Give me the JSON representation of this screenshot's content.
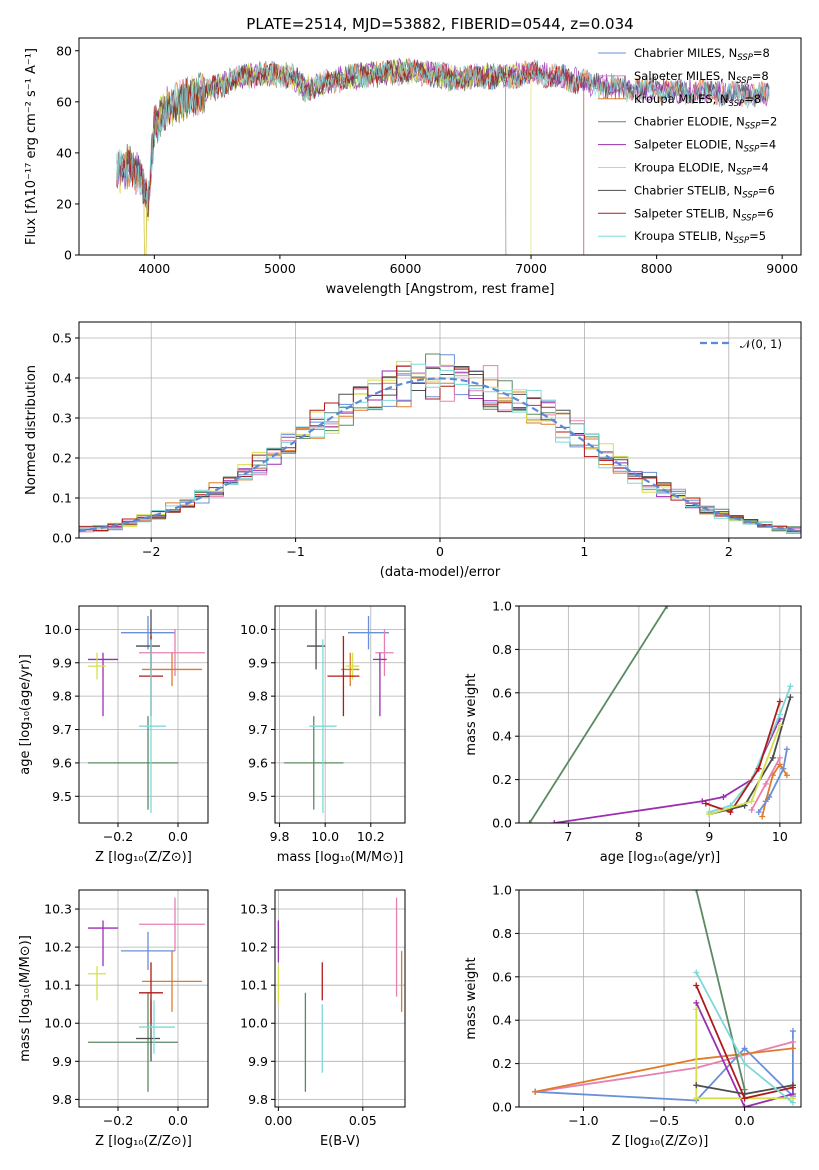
{
  "chart_data": [
    {
      "type": "line",
      "title": "PLATE=2514, MJD=53882, FIBERID=0544, z=0.034",
      "xlabel": "wavelength [Angstrom, rest frame]",
      "ylabel": "Flux [fλ10⁻¹⁷ erg cm⁻² s⁻¹ A⁻¹]",
      "xlim": [
        3400,
        9150
      ],
      "ylim": [
        0,
        85
      ],
      "xticks": [
        "4000",
        "5000",
        "6000",
        "7000",
        "8000",
        "9000"
      ],
      "yticks": [
        "0",
        "20",
        "40",
        "60",
        "80"
      ],
      "grid": false,
      "legend": "top-right",
      "spectrum_envelope": {
        "x": [
          3700,
          3800,
          3900,
          3950,
          4000,
          4100,
          4200,
          4300,
          4500,
          4700,
          4900,
          5100,
          5200,
          5400,
          5600,
          5800,
          6000,
          6200,
          6400,
          6600,
          6800,
          7000,
          7200,
          7400,
          7600,
          7800,
          8000,
          8200,
          8400,
          8600,
          8800
        ],
        "y": [
          32,
          35,
          30,
          20,
          50,
          58,
          60,
          62,
          66,
          70,
          71,
          70,
          65,
          68,
          70,
          71,
          72,
          71,
          69,
          70,
          70,
          71,
          70,
          68,
          66,
          65,
          65,
          64,
          64,
          63,
          63
        ]
      },
      "series": [
        {
          "name": "Chabrier MILES, N",
          "sub": "SSP",
          "suffix": "=8",
          "color": "#6a8fd9"
        },
        {
          "name": "Salpeter MILES, N",
          "sub": "SSP",
          "suffix": "=8",
          "color": "#e680b4"
        },
        {
          "name": "Kroupa MILES, N",
          "sub": "SSP",
          "suffix": "=8",
          "color": "#e07b2a"
        },
        {
          "name": "Chabrier ELODIE, N",
          "sub": "SSP",
          "suffix": "=2",
          "color": "#5a8a62"
        },
        {
          "name": "Salpeter ELODIE, N",
          "sub": "SSP",
          "suffix": "=4",
          "color": "#9a2fb0"
        },
        {
          "name": "Kroupa ELODIE, N",
          "sub": "SSP",
          "suffix": "=4",
          "color": "#d6e04a"
        },
        {
          "name": "Chabrier STELIB, N",
          "sub": "SSP",
          "suffix": "=6",
          "color": "#4d4d4d"
        },
        {
          "name": "Salpeter STELIB, N",
          "sub": "SSP",
          "suffix": "=6",
          "color": "#b01a1a"
        },
        {
          "name": "Kroupa STELIB, N",
          "sub": "SSP",
          "suffix": "=5",
          "color": "#7fd8d8"
        }
      ]
    },
    {
      "type": "histogram",
      "xlabel": "(data-model)/error",
      "ylabel": "Normed distribution",
      "xlim": [
        -2.5,
        2.5
      ],
      "ylim": [
        0,
        0.54
      ],
      "xticks": [
        "−2",
        "−1",
        "0",
        "1",
        "2"
      ],
      "yticks": [
        "0.0",
        "0.1",
        "0.2",
        "0.3",
        "0.4",
        "0.5"
      ],
      "grid": true,
      "legend": "top-right",
      "legend_label": "𝒩(0, 1)",
      "reference_curve": "normal(0,1)",
      "bin_width": 0.1
    },
    {
      "type": "scatter",
      "xlabel": "Z [log₁₀(Z/Z⊙)]",
      "ylabel": "age  [log₁₀(age/yr)]",
      "xlim": [
        -0.33,
        0.1
      ],
      "ylim": [
        9.42,
        10.07
      ],
      "xticks": [
        "−0.2",
        "0.0"
      ],
      "yticks": [
        "9.5",
        "9.6",
        "9.7",
        "9.8",
        "9.9",
        "10.0"
      ],
      "grid": true,
      "points": [
        {
          "x": -0.1,
          "xerr": [
            0.09,
            0.09
          ],
          "y": 9.99,
          "yerr": [
            0.05,
            0.05
          ],
          "color": "#6a8fd9"
        },
        {
          "x": -0.01,
          "xerr": [
            0.12,
            0.1
          ],
          "y": 9.93,
          "yerr": [
            0.07,
            0.07
          ],
          "color": "#e680b4"
        },
        {
          "x": -0.02,
          "xerr": [
            0.1,
            0.1
          ],
          "y": 9.88,
          "yerr": [
            0.05,
            0.05
          ],
          "color": "#e07b2a"
        },
        {
          "x": -0.1,
          "xerr": [
            0.2,
            0.1
          ],
          "y": 9.6,
          "yerr": [
            0.14,
            0.14
          ],
          "color": "#5a8a62"
        },
        {
          "x": -0.25,
          "xerr": [
            0.05,
            0.05
          ],
          "y": 9.91,
          "yerr": [
            0.17,
            0.02
          ],
          "color": "#9a2fb0"
        },
        {
          "x": -0.27,
          "xerr": [
            0.03,
            0.03
          ],
          "y": 9.89,
          "yerr": [
            0.04,
            0.04
          ],
          "color": "#d6e04a"
        },
        {
          "x": -0.09,
          "xerr": [
            0.05,
            0.03
          ],
          "y": 9.95,
          "yerr": [
            0.07,
            0.11
          ],
          "color": "#4d4d4d"
        },
        {
          "x": -0.09,
          "xerr": [
            0.04,
            0.04
          ],
          "y": 9.86,
          "yerr": [
            0.12,
            0.12
          ],
          "color": "#b01a1a"
        },
        {
          "x": -0.09,
          "xerr": [
            0.04,
            0.05
          ],
          "y": 9.71,
          "yerr": [
            0.26,
            0.26
          ],
          "color": "#7fd8d8"
        }
      ]
    },
    {
      "type": "scatter",
      "xlabel": "mass [log₁₀(M/M⊙)]",
      "ylabel": "",
      "xlim": [
        9.78,
        10.35
      ],
      "ylim": [
        9.42,
        10.07
      ],
      "xticks": [
        "9.8",
        "10.0",
        "10.2"
      ],
      "yticks": [
        "9.5",
        "9.6",
        "9.7",
        "9.8",
        "9.9",
        "10.0"
      ],
      "grid": true,
      "points": [
        {
          "x": 10.19,
          "xerr": [
            0.09,
            0.09
          ],
          "y": 9.99,
          "yerr": [
            0.05,
            0.05
          ],
          "color": "#6a8fd9"
        },
        {
          "x": 10.26,
          "xerr": [
            0.04,
            0.04
          ],
          "y": 9.93,
          "yerr": [
            0.07,
            0.07
          ],
          "color": "#e680b4"
        },
        {
          "x": 10.11,
          "xerr": [
            0.04,
            0.04
          ],
          "y": 9.88,
          "yerr": [
            0.05,
            0.05
          ],
          "color": "#e07b2a"
        },
        {
          "x": 9.95,
          "xerr": [
            0.13,
            0.13
          ],
          "y": 9.6,
          "yerr": [
            0.14,
            0.14
          ],
          "color": "#5a8a62"
        },
        {
          "x": 10.24,
          "xerr": [
            0.03,
            0.03
          ],
          "y": 9.91,
          "yerr": [
            0.17,
            0.02
          ],
          "color": "#9a2fb0"
        },
        {
          "x": 10.12,
          "xerr": [
            0.03,
            0.03
          ],
          "y": 9.89,
          "yerr": [
            0.04,
            0.04
          ],
          "color": "#d6e04a"
        },
        {
          "x": 9.96,
          "xerr": [
            0.04,
            0.04
          ],
          "y": 9.95,
          "yerr": [
            0.07,
            0.11
          ],
          "color": "#4d4d4d"
        },
        {
          "x": 10.08,
          "xerr": [
            0.07,
            0.07
          ],
          "y": 9.86,
          "yerr": [
            0.12,
            0.12
          ],
          "color": "#b01a1a"
        },
        {
          "x": 9.99,
          "xerr": [
            0.06,
            0.06
          ],
          "y": 9.71,
          "yerr": [
            0.26,
            0.26
          ],
          "color": "#7fd8d8"
        }
      ]
    },
    {
      "type": "line",
      "xlabel": "age  [log₁₀(age/yr)]",
      "ylabel": "mass weight",
      "xlim": [
        6.3,
        10.3
      ],
      "ylim": [
        0,
        1.0
      ],
      "xticks": [
        "7",
        "8",
        "9",
        "10"
      ],
      "yticks": [
        "0.0",
        "0.2",
        "0.4",
        "0.6",
        "0.8",
        "1.0"
      ],
      "grid": true,
      "series": [
        {
          "color": "#5a8a62",
          "x": [
            6.45,
            8.4
          ],
          "y": [
            0,
            1.0
          ]
        },
        {
          "color": "#9a2fb0",
          "x": [
            6.8,
            8.9,
            9.2,
            9.6,
            10.0
          ],
          "y": [
            0.0,
            0.1,
            0.12,
            0.2,
            0.48
          ]
        },
        {
          "color": "#7fd8d8",
          "x": [
            9.0,
            9.3,
            9.6,
            10.0,
            10.15
          ],
          "y": [
            0.05,
            0.08,
            0.2,
            0.5,
            0.63
          ]
        },
        {
          "color": "#b01a1a",
          "x": [
            8.95,
            9.3,
            9.7,
            10.0
          ],
          "y": [
            0.09,
            0.05,
            0.25,
            0.56
          ]
        },
        {
          "color": "#4d4d4d",
          "x": [
            9.0,
            9.5,
            9.9,
            10.15
          ],
          "y": [
            0.04,
            0.08,
            0.3,
            0.58
          ]
        },
        {
          "color": "#e07b2a",
          "x": [
            9.75,
            9.8,
            9.9,
            10.0,
            10.1
          ],
          "y": [
            0.03,
            0.1,
            0.22,
            0.27,
            0.22
          ]
        },
        {
          "color": "#6a8fd9",
          "x": [
            9.7,
            9.85,
            10.05,
            10.1
          ],
          "y": [
            0.05,
            0.12,
            0.25,
            0.34
          ]
        },
        {
          "color": "#e680b4",
          "x": [
            9.6,
            9.8,
            10.0
          ],
          "y": [
            0.06,
            0.18,
            0.3
          ]
        },
        {
          "color": "#d6e04a",
          "x": [
            9.0,
            9.6,
            10.0
          ],
          "y": [
            0.04,
            0.1,
            0.45
          ]
        }
      ]
    },
    {
      "type": "scatter",
      "xlabel": "Z [log₁₀(Z/Z⊙)]",
      "ylabel": "mass [log₁₀(M/M⊙)]",
      "xlim": [
        -0.33,
        0.1
      ],
      "ylim": [
        9.78,
        10.35
      ],
      "xticks": [
        "−0.2",
        "0.0"
      ],
      "yticks": [
        "9.8",
        "9.9",
        "10.0",
        "10.1",
        "10.2",
        "10.3"
      ],
      "grid": true,
      "points": [
        {
          "x": -0.1,
          "xerr": [
            0.09,
            0.09
          ],
          "y": 10.19,
          "yerr": [
            0.05,
            0.05
          ],
          "color": "#6a8fd9"
        },
        {
          "x": -0.01,
          "xerr": [
            0.12,
            0.1
          ],
          "y": 10.26,
          "yerr": [
            0.07,
            0.07
          ],
          "color": "#e680b4"
        },
        {
          "x": -0.02,
          "xerr": [
            0.1,
            0.1
          ],
          "y": 10.11,
          "yerr": [
            0.08,
            0.08
          ],
          "color": "#e07b2a"
        },
        {
          "x": -0.1,
          "xerr": [
            0.2,
            0.1
          ],
          "y": 9.95,
          "yerr": [
            0.13,
            0.13
          ],
          "color": "#5a8a62"
        },
        {
          "x": -0.25,
          "xerr": [
            0.05,
            0.05
          ],
          "y": 10.25,
          "yerr": [
            0.1,
            0.02
          ],
          "color": "#9a2fb0"
        },
        {
          "x": -0.27,
          "xerr": [
            0.03,
            0.03
          ],
          "y": 10.13,
          "yerr": [
            0.07,
            0.02
          ],
          "color": "#d6e04a"
        },
        {
          "x": -0.09,
          "xerr": [
            0.05,
            0.03
          ],
          "y": 9.96,
          "yerr": [
            0.06,
            0.1
          ],
          "color": "#4d4d4d"
        },
        {
          "x": -0.09,
          "xerr": [
            0.04,
            0.04
          ],
          "y": 10.08,
          "yerr": [
            0.08,
            0.08
          ],
          "color": "#b01a1a"
        },
        {
          "x": -0.08,
          "xerr": [
            0.05,
            0.07
          ],
          "y": 9.99,
          "yerr": [
            0.07,
            0.07
          ],
          "color": "#7fd8d8"
        }
      ]
    },
    {
      "type": "scatter",
      "xlabel": "E(B-V)",
      "ylabel": "",
      "xlim": [
        -0.002,
        0.075
      ],
      "ylim": [
        9.78,
        10.35
      ],
      "xticks": [
        "0.00",
        "0.05"
      ],
      "yticks": [
        "9.8",
        "9.9",
        "10.0",
        "10.1",
        "10.2",
        "10.3"
      ],
      "grid": true,
      "points": [
        {
          "x": 0.0,
          "y": 10.22,
          "yerr": [
            0.06,
            0.05
          ],
          "color": "#9a2fb0"
        },
        {
          "x": 0.0,
          "y": 10.1,
          "yerr": [
            0.05,
            0.05
          ],
          "color": "#d6e04a"
        },
        {
          "x": 0.016,
          "y": 9.95,
          "yerr": [
            0.13,
            0.13
          ],
          "color": "#5a8a62"
        },
        {
          "x": 0.026,
          "y": 10.11,
          "yerr": [
            0.05,
            0.05
          ],
          "color": "#b01a1a"
        },
        {
          "x": 0.026,
          "y": 9.96,
          "yerr": [
            0.09,
            0.09
          ],
          "color": "#7fd8d8"
        },
        {
          "x": 0.07,
          "y": 10.2,
          "yerr": [
            0.13,
            0.13
          ],
          "color": "#e680b4"
        },
        {
          "x": 0.073,
          "y": 10.11,
          "yerr": [
            0.08,
            0.08
          ],
          "color": "#e07b2a"
        }
      ]
    },
    {
      "type": "line",
      "xlabel": "Z [log₁₀(Z/Z⊙)]",
      "ylabel": "mass weight",
      "xlim": [
        -1.4,
        0.35
      ],
      "ylim": [
        0,
        1.0
      ],
      "xticks": [
        "−1.0",
        "−0.5",
        "0.0"
      ],
      "yticks": [
        "0.0",
        "0.2",
        "0.4",
        "0.6",
        "0.8",
        "1.0"
      ],
      "grid": true,
      "series": [
        {
          "color": "#6a8fd9",
          "x": [
            -1.3,
            -0.3,
            0.0,
            0.3,
            0.3
          ],
          "y": [
            0.07,
            0.03,
            0.27,
            0.05,
            0.35
          ]
        },
        {
          "color": "#e680b4",
          "x": [
            -1.3,
            -0.3,
            0.3
          ],
          "y": [
            0.07,
            0.18,
            0.3
          ]
        },
        {
          "color": "#e07b2a",
          "x": [
            -1.3,
            -0.3,
            0.3
          ],
          "y": [
            0.07,
            0.22,
            0.27
          ]
        },
        {
          "color": "#5a8a62",
          "x": [
            -0.3,
            0.0
          ],
          "y": [
            1.0,
            0.08
          ]
        },
        {
          "color": "#9a2fb0",
          "x": [
            -0.3,
            0.0,
            0.3
          ],
          "y": [
            0.48,
            0.0,
            0.06
          ]
        },
        {
          "color": "#d6e04a",
          "x": [
            -0.3,
            -0.3,
            0.0,
            0.3
          ],
          "y": [
            0.45,
            0.04,
            0.04,
            0.04
          ]
        },
        {
          "color": "#4d4d4d",
          "x": [
            -0.3,
            0.0,
            0.3
          ],
          "y": [
            0.1,
            0.06,
            0.1
          ]
        },
        {
          "color": "#b01a1a",
          "x": [
            -0.3,
            0.0,
            0.3
          ],
          "y": [
            0.56,
            0.04,
            0.09
          ]
        },
        {
          "color": "#7fd8d8",
          "x": [
            -0.3,
            0.0,
            0.3
          ],
          "y": [
            0.62,
            0.2,
            0.02
          ]
        }
      ]
    }
  ]
}
